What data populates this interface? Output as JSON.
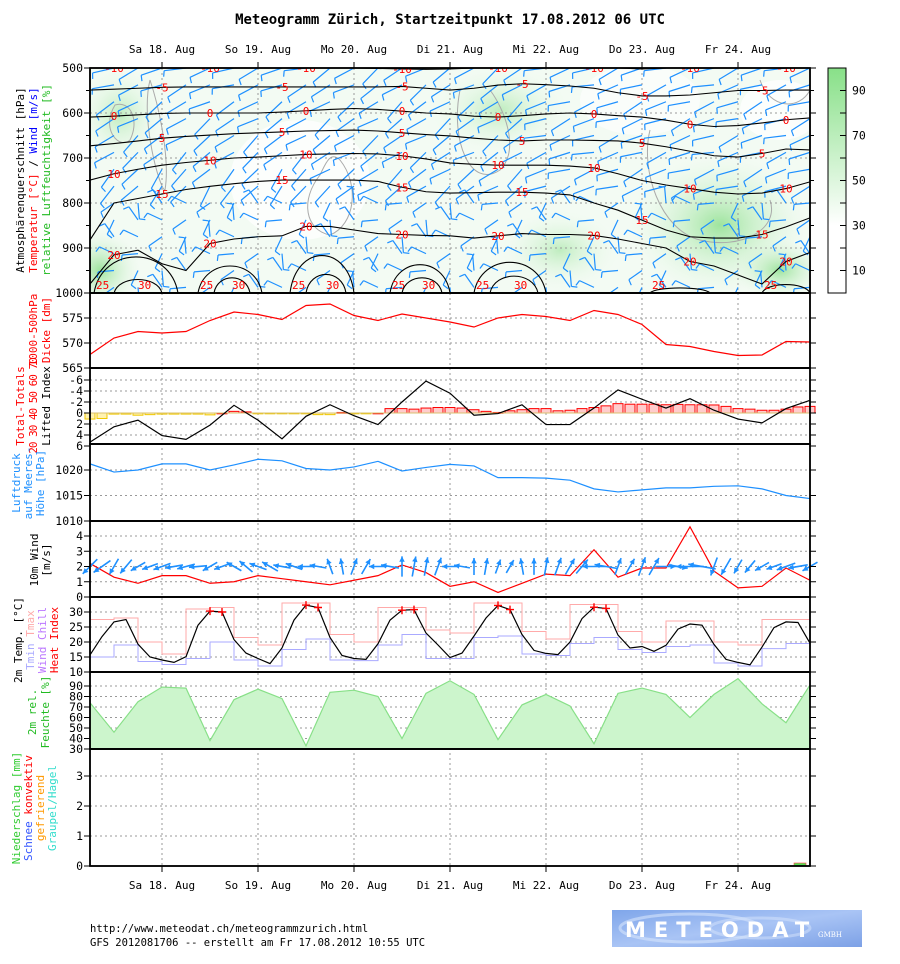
{
  "title": "Meteogramm Zürich, Startzeitpunkt 17.08.2012 06 UTC",
  "days": [
    "Sa 18. Aug",
    "So 19. Aug",
    "Mo 20. Aug",
    "Di 21. Aug",
    "Mi 22. Aug",
    "Do 23. Aug",
    "Fr 24. Aug"
  ],
  "labels": {
    "cross": {
      "l1": "Atmosphärenquerschnitt [hPa]",
      "temp": "Temperatur [°C]",
      "sep": " / ",
      "wind": "Wind [m/s]",
      "hum": "relative Luftfeuchtigkeit [%]"
    },
    "dicke": {
      "l1": "1000-500hPa",
      "l2": "Dicke [dm]"
    },
    "li": {
      "tt": "Total-Totals",
      "tt_scale": "20 30 40 50 60 70",
      "li": "Lifted Index"
    },
    "pressure": {
      "l1": "Luftdruck",
      "l2": "auf Meeres-",
      "l3": "Höhe [hPa]"
    },
    "wind": {
      "l1": "10m Wind",
      "l2": "[m/s]"
    },
    "temp": {
      "l1": "2m Temp. [°C]",
      "tmin": "Tmin",
      "tmax": "Tmax",
      "wc": "Wind Chill",
      "hi": "Heat Index"
    },
    "hum": {
      "l1": "2m rel.",
      "l2": "Feuchte [%]"
    },
    "precip": {
      "l1": "Niederschlag [mm]",
      "snow": "Schnee",
      "conv": "konvektiv",
      "frz": "gefrierend",
      "hail": "Graupel/Hagel"
    }
  },
  "colorbar": {
    "ticks": [
      "90",
      "70",
      "50",
      "30",
      "10"
    ]
  },
  "footer": {
    "url": "http://www.meteodat.ch/meteogrammzurich.html",
    "run": "GFS 2012081706 -- erstellt am Fr 17.08.2012 10:55 UTC"
  },
  "logo": {
    "name": "METEODAT",
    "suffix": "GMBH"
  },
  "colors": {
    "temp": "#ff0000",
    "wind": "#1e90ff",
    "hum": "#33cc33",
    "pressure": "#1e90ff",
    "tt_pos": "#ff0000",
    "tt_neg": "#f0c800",
    "tmin": "#aaaaff",
    "tmax": "#ffaaaa"
  },
  "chart_data": [
    {
      "id": "cross_section",
      "type": "contour",
      "title": "Atmosphärenquerschnitt",
      "ylim": [
        500,
        1000
      ],
      "y_ticks": [
        "500",
        "600",
        "700",
        "800",
        "900",
        "1000"
      ],
      "time_step_h": 6,
      "isotherms": [
        {
          "level": "-10",
          "pressure": [
            500,
            500,
            500,
            500,
            500,
            500,
            500,
            500,
            500,
            500,
            500,
            500,
            501,
            502,
            503,
            502,
            500,
            500,
            500,
            500,
            500,
            500,
            500,
            502,
            500,
            500,
            500,
            500,
            500,
            500,
            500
          ]
        },
        {
          "level": "-5",
          "pressure": [
            549,
            547,
            545,
            543,
            542,
            542,
            542,
            542,
            542,
            542,
            542,
            542,
            542,
            541,
            545,
            549,
            545,
            538,
            535,
            537,
            540,
            545,
            555,
            562,
            562,
            560,
            555,
            550,
            550,
            549,
            549
          ]
        },
        {
          "level": "0",
          "pressure": [
            609,
            607,
            604,
            601,
            600,
            600,
            600,
            600,
            598,
            595,
            592,
            590,
            592,
            596,
            600,
            602,
            607,
            609,
            606,
            602,
            600,
            602,
            606,
            609,
            616,
            625,
            630,
            628,
            622,
            615,
            611
          ]
        },
        {
          "level": "5",
          "pressure": [
            673,
            668,
            662,
            656,
            652,
            649,
            646,
            644,
            642,
            640,
            639,
            638,
            640,
            644,
            648,
            651,
            656,
            660,
            662,
            660,
            660,
            661,
            662,
            667,
            675,
            685,
            695,
            698,
            690,
            680,
            682
          ]
        },
        {
          "level": "10",
          "pressure": [
            749,
            735,
            725,
            716,
            710,
            705,
            700,
            698,
            695,
            692,
            691,
            690,
            691,
            695,
            702,
            711,
            714,
            716,
            716,
            716,
            718,
            722,
            735,
            750,
            760,
            768,
            776,
            780,
            778,
            768,
            753
          ]
        },
        {
          "level": "15",
          "pressure": [
            882,
            800,
            790,
            780,
            770,
            763,
            757,
            752,
            749,
            749,
            749,
            749,
            752,
            765,
            775,
            778,
            777,
            776,
            776,
            778,
            782,
            800,
            816,
            838,
            860,
            875,
            878,
            878,
            870,
            853,
            833
          ]
        },
        {
          "level": "20",
          "pressure": [
            980,
            915,
            905,
            935,
            950,
            890,
            880,
            875,
            873,
            852,
            852,
            860,
            868,
            870,
            872,
            873,
            878,
            873,
            868,
            870,
            870,
            872,
            880,
            890,
            900,
            930,
            940,
            960,
            980,
            930,
            910
          ]
        }
      ],
      "warm_domes": [
        {
          "level": "25",
          "start_h": 1,
          "end_h": 22,
          "top_hPa": 893
        },
        {
          "level": "25",
          "start_h": 27,
          "end_h": 43,
          "top_hPa": 920
        },
        {
          "level": "25",
          "start_h": 50,
          "end_h": 66,
          "top_hPa": 889
        },
        {
          "level": "25",
          "start_h": 75,
          "end_h": 90,
          "top_hPa": 916
        },
        {
          "level": "25",
          "start_h": 96,
          "end_h": 114,
          "top_hPa": 909
        },
        {
          "level": "25",
          "start_h": 140,
          "end_h": 155,
          "top_hPa": 985
        },
        {
          "level": "25",
          "start_h": 168,
          "end_h": 180,
          "top_hPa": 975
        },
        {
          "level": "30",
          "start_h": 6,
          "end_h": 18,
          "top_hPa": 960
        },
        {
          "level": "30",
          "start_h": 31,
          "end_h": 40,
          "top_hPa": 955
        },
        {
          "level": "30",
          "start_h": 54,
          "end_h": 64,
          "top_hPa": 945
        },
        {
          "level": "30",
          "start_h": 78,
          "end_h": 88,
          "top_hPa": 955
        },
        {
          "level": "30",
          "start_h": 100,
          "end_h": 112,
          "top_hPa": 950
        }
      ],
      "humidity_range": [
        0,
        100
      ]
    },
    {
      "id": "dicke",
      "type": "line",
      "ylabel": "1000-500hPa Dicke [dm]",
      "ylim": [
        565,
        580
      ],
      "y_ticks": [
        "575",
        "570",
        "565"
      ],
      "time_step_h": 6,
      "values": [
        567.7,
        571,
        572.3,
        572,
        572.3,
        574.5,
        576.2,
        575.7,
        574.7,
        577.5,
        577.8,
        575.5,
        574.5,
        575.8,
        575,
        574.2,
        573.2,
        575,
        575.7,
        575.3,
        574.5,
        576.5,
        575.7,
        573.7,
        569.7,
        569.3,
        568.3,
        567.5,
        567.6,
        570.3,
        570.2
      ]
    },
    {
      "id": "lifted_index",
      "type": "line+bar",
      "ylabel": "Lifted Index",
      "ylim": [
        6,
        -6
      ],
      "y_ticks": [
        "-6",
        "-4",
        "-2",
        "0",
        "2",
        "4",
        "6"
      ],
      "time_step_h": 6,
      "values": [
        5.3,
        2.5,
        1.3,
        4.1,
        4.8,
        2.2,
        -1.4,
        1.3,
        4.7,
        0.6,
        -1.5,
        0.5,
        2.1,
        -2,
        -5.8,
        -3.6,
        0.4,
        0.1,
        -1.5,
        2.1,
        2.1,
        -0.9,
        -4.2,
        -2.5,
        -0.9,
        -2.6,
        -0.5,
        1.1,
        1.8,
        -0.8,
        -2.3
      ],
      "total_totals": {
        "time_step_h": 3,
        "baseline": 40,
        "values": [
          34.5,
          35,
          39,
          39,
          38,
          38.5,
          39,
          39,
          39,
          39,
          38.3,
          40,
          41.5,
          41,
          39.5,
          39.5,
          39.5,
          39.5,
          39.5,
          38.5,
          38.5,
          40.5,
          39.5,
          39.5,
          40,
          44,
          44,
          43.5,
          44.5,
          45,
          45,
          44.5,
          43,
          41.5,
          40.5,
          42,
          43,
          44,
          44,
          42,
          42.5,
          44,
          45,
          46.5,
          48.5,
          48,
          48,
          48,
          47.5,
          47.8,
          47.5,
          47.5,
          47.3,
          46,
          44,
          43.5,
          42.5,
          42.5,
          43.5,
          45.5,
          46
        ]
      }
    },
    {
      "id": "pressure",
      "type": "line",
      "ylabel": "Luftdruck auf Meereshöhe [hPa]",
      "ylim": [
        1010,
        1025
      ],
      "y_ticks": [
        "1020",
        "1015",
        "1010"
      ],
      "time_step_h": 6,
      "values": [
        1021.2,
        1019.6,
        1020,
        1021.2,
        1021.2,
        1020,
        1021,
        1022.1,
        1021.8,
        1020.3,
        1020,
        1020.6,
        1021.7,
        1019.8,
        1020.5,
        1021.1,
        1020.8,
        1018.5,
        1018.5,
        1018.4,
        1018,
        1016.3,
        1015.7,
        1016.1,
        1016.5,
        1016.5,
        1016.8,
        1016.9,
        1016.3,
        1015,
        1014.4
      ]
    },
    {
      "id": "wind10m",
      "type": "line+vector",
      "ylabel": "10m Wind [m/s]",
      "ylim": [
        0,
        5
      ],
      "y_ticks": [
        "4",
        "3",
        "2",
        "1",
        "0"
      ],
      "time_step_h": 6,
      "speed": [
        2.2,
        1.3,
        0.9,
        1.4,
        1.4,
        0.9,
        1.0,
        1.4,
        1.2,
        1.0,
        0.8,
        1.1,
        1.4,
        2.1,
        1.6,
        0.7,
        1.0,
        0.3,
        0.9,
        1.5,
        1.4,
        3.1,
        1.3,
        1.9,
        1.9,
        4.6,
        1.7,
        0.6,
        0.7,
        1.9,
        1.1
      ],
      "direction_deg": [
        45,
        30,
        60,
        70,
        75,
        60,
        120,
        110,
        100,
        90,
        160,
        200,
        90,
        180,
        190,
        90,
        180,
        200,
        170,
        190,
        210,
        90,
        200,
        200,
        270,
        90,
        20,
        30,
        60,
        70,
        60
      ]
    },
    {
      "id": "temp2m",
      "type": "line+step",
      "ylabel": "2m Temp. [°C]",
      "ylim": [
        10,
        35
      ],
      "y_ticks": [
        "30",
        "25",
        "20",
        "15",
        "10"
      ],
      "time_step_h": 3,
      "values": [
        15.7,
        21.8,
        26.7,
        27.5,
        19.3,
        15,
        14,
        13.2,
        15.1,
        25.6,
        30.3,
        30,
        20.8,
        16.3,
        14.5,
        12.8,
        18,
        27.3,
        32.3,
        31.5,
        21.5,
        15.5,
        14.5,
        14.2,
        19.4,
        27.3,
        30.6,
        30.8,
        23,
        19,
        14.8,
        16.3,
        22,
        28,
        32.2,
        30.8,
        22.5,
        17.2,
        16.2,
        15.8,
        20,
        27.8,
        31.6,
        31.2,
        22.3,
        18,
        18.5,
        16.9,
        18.9,
        24.3,
        26,
        25.6,
        19.2,
        14.2,
        13.2,
        12.4,
        18.3,
        24.8,
        26.7,
        26.5,
        19.6
      ],
      "tmax_6h": [
        27.5,
        28,
        20,
        16,
        31,
        31.5,
        21.5,
        19,
        33,
        33,
        22.5,
        20,
        31.5,
        31.5,
        24,
        23,
        33,
        33,
        23.5,
        21,
        32.5,
        32.5,
        23.5,
        20,
        27,
        27,
        20,
        19,
        27.5,
        27.5
      ],
      "tmin_6h": [
        15,
        19,
        13.5,
        12.5,
        14.5,
        20,
        14,
        12,
        17.5,
        21,
        14,
        13.8,
        19,
        22.5,
        14.5,
        14.5,
        21.5,
        22,
        16,
        15.5,
        19.5,
        21.5,
        17.5,
        16.5,
        18.5,
        19,
        13,
        12,
        17.8,
        19.5
      ],
      "heat_index_threshold": 30
    },
    {
      "id": "rh2m",
      "type": "area",
      "ylabel": "2m rel. Feuchte [%]",
      "ylim": [
        30,
        103
      ],
      "y_ticks": [
        "90",
        "80",
        "70",
        "60",
        "50",
        "40",
        "30"
      ],
      "time_step_h": 6,
      "values": [
        74,
        46,
        75,
        89,
        88,
        38,
        77,
        87,
        78,
        33,
        84,
        86,
        80,
        40,
        83,
        95,
        82,
        39,
        72,
        82,
        71,
        35,
        83,
        88,
        82,
        60,
        82,
        97,
        73,
        55,
        91
      ]
    },
    {
      "id": "precip",
      "type": "bar",
      "ylabel": "Niederschlag [mm]",
      "ylim": [
        0,
        4
      ],
      "y_ticks": [
        "3",
        "2",
        "1",
        "0"
      ],
      "bars": [
        {
          "start_h": 176,
          "end_h": 179,
          "total": 0.1
        }
      ]
    }
  ]
}
